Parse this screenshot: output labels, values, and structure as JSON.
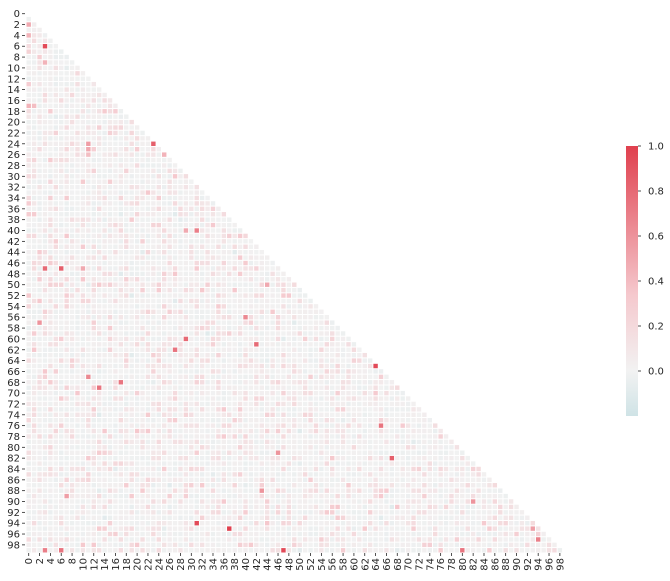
{
  "chart_data": {
    "type": "heatmap",
    "title": "",
    "xlabel": "",
    "ylabel": "",
    "n": 100,
    "mask": "upper-triangle",
    "x_tick_labels": [
      "0",
      "2",
      "4",
      "6",
      "8",
      "10",
      "12",
      "14",
      "16",
      "18",
      "20",
      "22",
      "24",
      "26",
      "28",
      "30",
      "32",
      "34",
      "36",
      "38",
      "40",
      "42",
      "44",
      "46",
      "48",
      "50",
      "52",
      "54",
      "56",
      "58",
      "60",
      "62",
      "64",
      "66",
      "68",
      "70",
      "72",
      "74",
      "76",
      "78",
      "80",
      "82",
      "84",
      "86",
      "88",
      "90",
      "92",
      "94",
      "96",
      "98"
    ],
    "y_tick_labels": [
      "0",
      "2",
      "4",
      "6",
      "8",
      "10",
      "12",
      "14",
      "16",
      "18",
      "20",
      "22",
      "24",
      "26",
      "28",
      "30",
      "32",
      "34",
      "36",
      "38",
      "40",
      "42",
      "44",
      "46",
      "48",
      "50",
      "52",
      "54",
      "56",
      "58",
      "60",
      "62",
      "64",
      "66",
      "68",
      "70",
      "72",
      "74",
      "76",
      "78",
      "80",
      "82",
      "84",
      "86",
      "88",
      "90",
      "92",
      "94",
      "96",
      "98"
    ],
    "colorbar": {
      "min": -0.2,
      "max": 1.0,
      "ticks": [
        "0.0",
        "0.2",
        "0.4",
        "0.6",
        "0.8",
        "1.0"
      ],
      "low_color": "#cfe3e6",
      "mid_color": "#f2f2f2",
      "high_color": "#e0404e"
    },
    "notable_values": [
      {
        "row": 2,
        "col": 0,
        "value": 0.5
      },
      {
        "row": 4,
        "col": 0,
        "value": 0.45
      },
      {
        "row": 6,
        "col": 3,
        "value": 0.95
      },
      {
        "row": 8,
        "col": 2,
        "value": 0.3
      },
      {
        "row": 9,
        "col": 3,
        "value": 0.45
      },
      {
        "row": 17,
        "col": 0,
        "value": 0.45
      },
      {
        "row": 17,
        "col": 1,
        "value": 0.4
      },
      {
        "row": 24,
        "col": 11,
        "value": 0.55
      },
      {
        "row": 24,
        "col": 23,
        "value": 0.85
      },
      {
        "row": 25,
        "col": 11,
        "value": 0.5
      },
      {
        "row": 26,
        "col": 11,
        "value": 0.4
      },
      {
        "row": 26,
        "col": 25,
        "value": 0.45
      },
      {
        "row": 29,
        "col": 29,
        "value": 0.45
      },
      {
        "row": 40,
        "col": 29,
        "value": 0.5
      },
      {
        "row": 40,
        "col": 31,
        "value": 0.7
      },
      {
        "row": 47,
        "col": 3,
        "value": 0.8
      },
      {
        "row": 47,
        "col": 6,
        "value": 0.85
      },
      {
        "row": 47,
        "col": 10,
        "value": 0.5
      },
      {
        "row": 50,
        "col": 44,
        "value": 0.5
      },
      {
        "row": 56,
        "col": 40,
        "value": 0.65
      },
      {
        "row": 57,
        "col": 2,
        "value": 0.6
      },
      {
        "row": 60,
        "col": 29,
        "value": 0.8
      },
      {
        "row": 61,
        "col": 42,
        "value": 0.8
      },
      {
        "row": 62,
        "col": 27,
        "value": 0.75
      },
      {
        "row": 65,
        "col": 64,
        "value": 0.95
      },
      {
        "row": 67,
        "col": 11,
        "value": 0.65
      },
      {
        "row": 68,
        "col": 17,
        "value": 0.75
      },
      {
        "row": 69,
        "col": 13,
        "value": 0.75
      },
      {
        "row": 76,
        "col": 65,
        "value": 0.75
      },
      {
        "row": 81,
        "col": 46,
        "value": 0.6
      },
      {
        "row": 82,
        "col": 67,
        "value": 0.85
      },
      {
        "row": 88,
        "col": 43,
        "value": 0.6
      },
      {
        "row": 89,
        "col": 7,
        "value": 0.55
      },
      {
        "row": 90,
        "col": 82,
        "value": 0.6
      },
      {
        "row": 94,
        "col": 31,
        "value": 0.95
      },
      {
        "row": 95,
        "col": 37,
        "value": 1.0
      },
      {
        "row": 95,
        "col": 93,
        "value": 0.55
      },
      {
        "row": 97,
        "col": 94,
        "value": 0.7
      },
      {
        "row": 99,
        "col": 3,
        "value": 0.7
      },
      {
        "row": 99,
        "col": 6,
        "value": 0.75
      },
      {
        "row": 99,
        "col": 47,
        "value": 0.95
      },
      {
        "row": 99,
        "col": 80,
        "value": 0.75
      }
    ],
    "other_cell_value_range": [
      -0.1,
      0.35
    ]
  }
}
